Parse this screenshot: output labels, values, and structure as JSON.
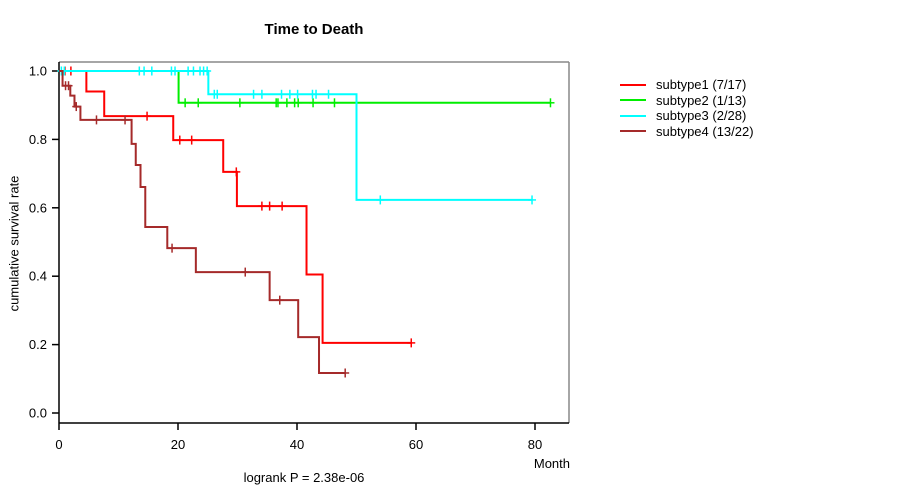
{
  "chart_data": {
    "type": "line",
    "subtype": "kaplan-meier-step",
    "title": "Time to Death",
    "xlabel": "Month",
    "ylabel": "cumulative survival rate",
    "annotation": "logrank P = 2.38e-06",
    "xticks": [
      0,
      20,
      40,
      60,
      80
    ],
    "yticks": [
      0.0,
      0.2,
      0.4,
      0.6,
      0.8,
      1.0
    ],
    "xlim": [
      0,
      85.7
    ],
    "ylim": [
      0,
      1
    ],
    "grid": false,
    "legend_position": "right-outside",
    "frame_color": "#888888",
    "axis_color": "#000000",
    "series": [
      {
        "name": "subtype1 (7/17)",
        "color": "#FF0000",
        "points": [
          [
            0,
            1.0
          ],
          [
            4.6,
            0.94
          ],
          [
            7.6,
            0.868
          ],
          [
            19.2,
            0.798
          ],
          [
            27.6,
            0.705
          ],
          [
            29.9,
            0.605
          ],
          [
            41.6,
            0.405
          ],
          [
            44.3,
            0.205
          ]
        ],
        "end": 59.2,
        "censors": [
          [
            1.0,
            1.0
          ],
          [
            2.0,
            1.0
          ],
          [
            14.8,
            0.868
          ],
          [
            20.3,
            0.798
          ],
          [
            22.3,
            0.798
          ],
          [
            29.8,
            0.705
          ],
          [
            34.1,
            0.605
          ],
          [
            35.4,
            0.605
          ],
          [
            37.5,
            0.605
          ],
          [
            59.2,
            0.205
          ]
        ]
      },
      {
        "name": "subtype2 (1/13)",
        "color": "#00EE00",
        "points": [
          [
            0,
            1.0
          ],
          [
            20.1,
            0.907
          ]
        ],
        "end": 82.6,
        "censors": [
          [
            21.2,
            0.907
          ],
          [
            23.4,
            0.907
          ],
          [
            30.4,
            0.907
          ],
          [
            36.5,
            0.907
          ],
          [
            36.8,
            0.907
          ],
          [
            38.3,
            0.907
          ],
          [
            39.6,
            0.907
          ],
          [
            40.2,
            0.907
          ],
          [
            42.7,
            0.907
          ],
          [
            46.3,
            0.907
          ],
          [
            82.6,
            0.907
          ]
        ]
      },
      {
        "name": "subtype3 (2/28)",
        "color": "#00FFFF",
        "points": [
          [
            0,
            1.0
          ],
          [
            25.1,
            0.932
          ],
          [
            50.0,
            0.623
          ]
        ],
        "end": 79.5,
        "censors": [
          [
            0.4,
            1.0
          ],
          [
            0.9,
            1.0
          ],
          [
            13.5,
            1.0
          ],
          [
            14.3,
            1.0
          ],
          [
            15.6,
            1.0
          ],
          [
            18.9,
            1.0
          ],
          [
            19.5,
            1.0
          ],
          [
            21.7,
            1.0
          ],
          [
            22.6,
            1.0
          ],
          [
            23.7,
            1.0
          ],
          [
            24.3,
            1.0
          ],
          [
            24.9,
            1.0
          ],
          [
            26.1,
            0.932
          ],
          [
            26.6,
            0.932
          ],
          [
            32.7,
            0.932
          ],
          [
            34.1,
            0.932
          ],
          [
            37.4,
            0.932
          ],
          [
            38.8,
            0.932
          ],
          [
            40.1,
            0.932
          ],
          [
            42.6,
            0.932
          ],
          [
            43.2,
            0.932
          ],
          [
            45.3,
            0.932
          ],
          [
            54.0,
            0.623
          ],
          [
            79.5,
            0.623
          ]
        ]
      },
      {
        "name": "subtype4 (13/22)",
        "color": "#A52A2A",
        "points": [
          [
            0,
            1.0
          ],
          [
            0.6,
            0.957
          ],
          [
            1.9,
            0.928
          ],
          [
            2.6,
            0.896
          ],
          [
            3.6,
            0.857
          ],
          [
            12.2,
            0.787
          ],
          [
            12.9,
            0.725
          ],
          [
            13.7,
            0.661
          ],
          [
            14.5,
            0.544
          ],
          [
            18.2,
            0.482
          ],
          [
            23.0,
            0.412
          ],
          [
            35.4,
            0.33
          ],
          [
            40.2,
            0.222
          ],
          [
            43.7,
            0.117
          ]
        ],
        "end": 48.1,
        "censors": [
          [
            1.1,
            0.957
          ],
          [
            1.6,
            0.957
          ],
          [
            2.9,
            0.896
          ],
          [
            6.3,
            0.857
          ],
          [
            11.1,
            0.857
          ],
          [
            19.0,
            0.482
          ],
          [
            31.3,
            0.412
          ],
          [
            37.1,
            0.33
          ],
          [
            48.1,
            0.117
          ]
        ]
      }
    ]
  }
}
